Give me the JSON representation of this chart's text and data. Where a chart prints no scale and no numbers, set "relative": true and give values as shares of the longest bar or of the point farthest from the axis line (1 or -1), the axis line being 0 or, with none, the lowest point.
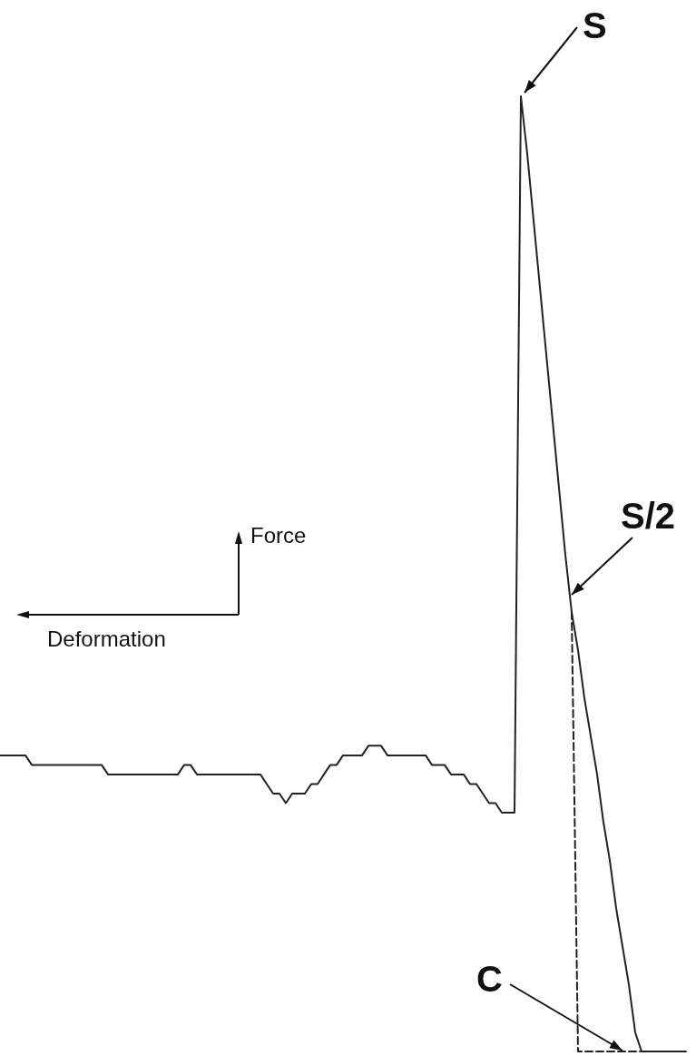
{
  "chart_data": {
    "type": "line",
    "relative": true,
    "xlabel": "Deformation",
    "ylabel": "Force",
    "grid": false,
    "annotations": [
      "S",
      "S/2",
      "C"
    ],
    "categories": [
      null,
      null,
      null,
      null,
      null,
      null,
      null,
      null,
      null,
      null,
      null,
      null,
      null,
      null,
      null,
      null,
      null,
      null,
      null,
      null,
      null,
      null,
      null,
      null,
      null,
      null,
      null,
      null,
      null,
      null,
      null,
      null,
      null,
      null,
      null,
      null,
      null,
      null,
      null,
      null,
      null,
      null,
      null,
      null,
      null,
      null,
      null,
      null,
      null,
      null,
      null,
      null,
      null,
      null,
      null,
      null,
      null,
      null,
      null,
      null,
      null,
      null,
      null,
      null,
      null,
      null,
      null,
      null,
      null,
      null,
      null,
      null,
      null,
      null,
      null,
      null,
      null,
      null,
      null,
      null,
      null,
      null,
      null,
      null,
      null,
      null,
      null,
      null,
      null,
      null,
      null,
      null,
      null,
      null,
      null,
      null,
      null,
      null,
      null,
      null,
      null,
      null,
      null,
      null,
      null,
      null,
      null,
      null,
      null
    ],
    "series": [
      {
        "color": "#222222",
        "line_style": "solid",
        "values": [
          0.31,
          0.31,
          0.31,
          0.31,
          0.31,
          0.3,
          0.3,
          0.3,
          0.3,
          0.3,
          0.3,
          0.3,
          0.3,
          0.3,
          0.3,
          0.3,
          0.3,
          0.29,
          0.29,
          0.29,
          0.29,
          0.29,
          0.29,
          0.29,
          0.29,
          0.29,
          0.29,
          0.29,
          0.29,
          0.3,
          0.3,
          0.29,
          0.29,
          0.29,
          0.29,
          0.29,
          0.29,
          0.29,
          0.29,
          0.29,
          0.29,
          0.29,
          0.28,
          0.27,
          0.27,
          0.26,
          0.27,
          0.27,
          0.27,
          0.28,
          0.28,
          0.29,
          0.3,
          0.3,
          0.31,
          0.31,
          0.31,
          0.31,
          0.32,
          0.32,
          0.32,
          0.31,
          0.31,
          0.31,
          0.31,
          0.31,
          0.31,
          0.31,
          0.3,
          0.3,
          0.3,
          0.29,
          0.29,
          0.29,
          0.28,
          0.28,
          0.27,
          0.26,
          0.26,
          0.25,
          0.25,
          0.25,
          1.0,
          0.94,
          0.87,
          0.8,
          0.73,
          0.66,
          0.59,
          0.52,
          0.46,
          0.42,
          0.37,
          0.33,
          0.29,
          0.24,
          0.2,
          0.15,
          0.11,
          0.07,
          0.02,
          0,
          0,
          0,
          0,
          0,
          0,
          0,
          0
        ]
      },
      {
        "color": "#222222",
        "line_style": "dashed",
        "values": [
          null,
          null,
          null,
          null,
          null,
          null,
          null,
          null,
          null,
          null,
          null,
          null,
          null,
          null,
          null,
          null,
          null,
          null,
          null,
          null,
          null,
          null,
          null,
          null,
          null,
          null,
          null,
          null,
          null,
          null,
          null,
          null,
          null,
          null,
          null,
          null,
          null,
          null,
          null,
          null,
          null,
          null,
          null,
          null,
          null,
          null,
          null,
          null,
          null,
          null,
          null,
          null,
          null,
          null,
          null,
          null,
          null,
          null,
          null,
          null,
          null,
          null,
          null,
          null,
          null,
          null,
          null,
          null,
          null,
          null,
          null,
          null,
          null,
          null,
          null,
          null,
          null,
          null,
          null,
          null,
          null,
          null,
          null,
          null,
          null,
          null,
          null,
          null,
          null,
          null,
          0.46,
          0,
          0,
          0,
          0,
          0,
          0,
          0,
          0,
          0,
          0,
          0,
          null,
          null,
          null,
          null,
          null,
          null,
          null
        ]
      }
    ]
  }
}
